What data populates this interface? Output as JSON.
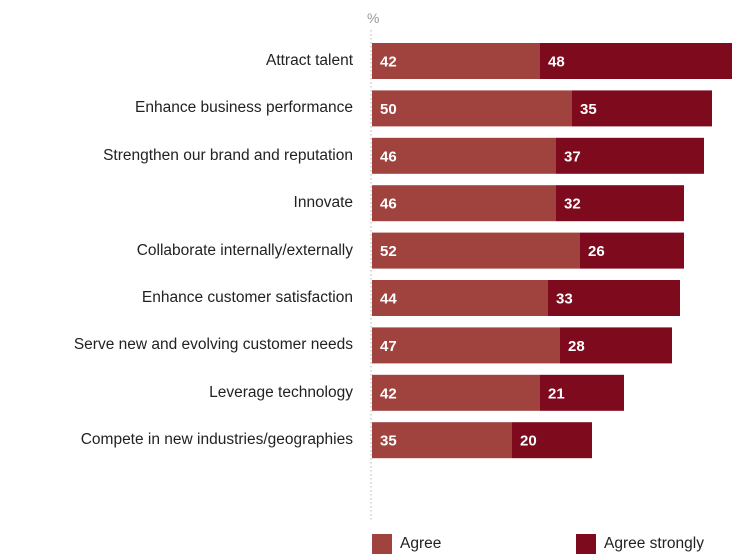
{
  "chart_data": {
    "type": "bar",
    "orientation": "horizontal",
    "stacked": true,
    "unit": "%",
    "categories": [
      "Attract talent",
      "Enhance business performance",
      "Strengthen our brand and reputation",
      "Innovate",
      "Collaborate internally/externally",
      "Enhance customer satisfaction",
      "Serve new and evolving customer needs",
      "Leverage technology",
      "Compete in new industries/geographies"
    ],
    "series": [
      {
        "name": "Agree",
        "color": "#a0433f",
        "values": [
          42,
          50,
          46,
          46,
          52,
          44,
          47,
          42,
          35
        ]
      },
      {
        "name": "Agree strongly",
        "color": "#7d0a1d",
        "values": [
          48,
          35,
          37,
          32,
          26,
          33,
          28,
          21,
          20
        ]
      }
    ],
    "legend_position": "bottom",
    "grid": false
  }
}
